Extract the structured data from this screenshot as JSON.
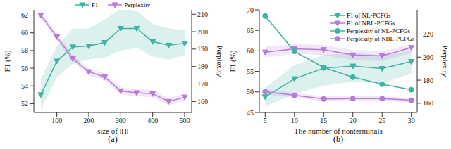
{
  "chart_data": [
    {
      "type": "line",
      "title": "(a)",
      "x_label": "size of |H|",
      "y_label": "F1 (%)",
      "y2_label": "Perplexity",
      "x": [
        50,
        100,
        150,
        200,
        250,
        300,
        350,
        400,
        450,
        500
      ],
      "xlim": [
        28,
        522
      ],
      "xticks": [
        100,
        200,
        300,
        400,
        500
      ],
      "ylim": [
        51,
        62.6
      ],
      "yticks": [
        52,
        54,
        56,
        58,
        60,
        62
      ],
      "y2lim": [
        153.7,
        212.5
      ],
      "y2ticks": [
        160,
        170,
        180,
        190,
        200,
        210
      ],
      "series": [
        {
          "name": "F1",
          "color": "#3db3a3",
          "marker": "triangle_down",
          "values": [
            53.0,
            56.8,
            58.4,
            58.5,
            58.9,
            60.5,
            60.5,
            59.0,
            58.6,
            58.8
          ],
          "lower": [
            51.3,
            55.0,
            56.5,
            57.0,
            57.2,
            58.0,
            58.3,
            57.3,
            57.0,
            57.5
          ],
          "upper": [
            54.8,
            58.5,
            60.5,
            60.5,
            61.5,
            62.8,
            62.5,
            61.0,
            60.5,
            60.3
          ]
        },
        {
          "name": "Perplexity",
          "color": "#b67bd6",
          "marker": "triangle_down",
          "axis": "y2",
          "values": [
            209.5,
            197.0,
            184.5,
            177.0,
            174.0,
            166.0,
            165.0,
            164.5,
            160.0,
            162.5
          ],
          "lower": [
            207.5,
            195.0,
            182.5,
            175.0,
            172.0,
            164.0,
            163.0,
            162.5,
            158.0,
            160.5
          ],
          "upper": [
            211.5,
            199.0,
            186.5,
            179.0,
            176.0,
            168.0,
            167.0,
            166.5,
            162.0,
            164.5
          ]
        }
      ]
    },
    {
      "type": "line",
      "title": "(b)",
      "x_label": "The number of nonterminals",
      "y_label": "F1 (%)",
      "y2_label": "Perplexity",
      "legend": "upper right",
      "x": [
        5,
        10,
        15,
        20,
        25,
        30
      ],
      "xlim": [
        4,
        31
      ],
      "xticks": [
        5,
        10,
        15,
        20,
        25,
        30
      ],
      "ylim": [
        45,
        70
      ],
      "yticks": [
        45,
        50,
        55,
        60,
        65,
        70
      ],
      "y2lim": [
        152,
        241
      ],
      "y2ticks": [
        160,
        180,
        200,
        220
      ],
      "series": [
        {
          "name": "F1 of NL-PCFGs",
          "color": "#3db3a3",
          "marker": "triangle_down",
          "values": [
            48.8,
            53.2,
            55.8,
            56.3,
            55.7,
            57.4
          ],
          "lower": [
            46.5,
            49.5,
            51.5,
            52.5,
            52.0,
            54.5
          ],
          "upper": [
            51.0,
            56.5,
            59.0,
            59.5,
            59.0,
            60.0
          ]
        },
        {
          "name": "F1 of NBL-PCFGs",
          "color": "#b67bd6",
          "marker": "triangle_down",
          "values": [
            59.7,
            60.5,
            60.3,
            59.0,
            58.8,
            60.8
          ],
          "lower": [
            58.5,
            59.3,
            59.0,
            57.8,
            57.5,
            59.5
          ],
          "upper": [
            61.0,
            61.6,
            61.5,
            60.2,
            60.0,
            61.5
          ]
        },
        {
          "name": "Perplexity of NL-PCFGs",
          "color": "#3db3a3",
          "marker": "circle",
          "axis": "y2",
          "values": [
            235.7,
            205.0,
            191.0,
            182.6,
            176.5,
            171.7
          ]
        },
        {
          "name": "Perplexity of NBL-PCFGs",
          "color": "#b67bd6",
          "marker": "circle",
          "axis": "y2",
          "values": [
            170.0,
            167.0,
            163.7,
            164.0,
            164.0,
            162.6
          ],
          "lower": [
            167.5,
            165.0,
            161.5,
            162.0,
            162.0,
            160.5
          ],
          "upper": [
            172.5,
            169.0,
            166.0,
            166.0,
            166.0,
            164.5
          ]
        }
      ]
    }
  ]
}
